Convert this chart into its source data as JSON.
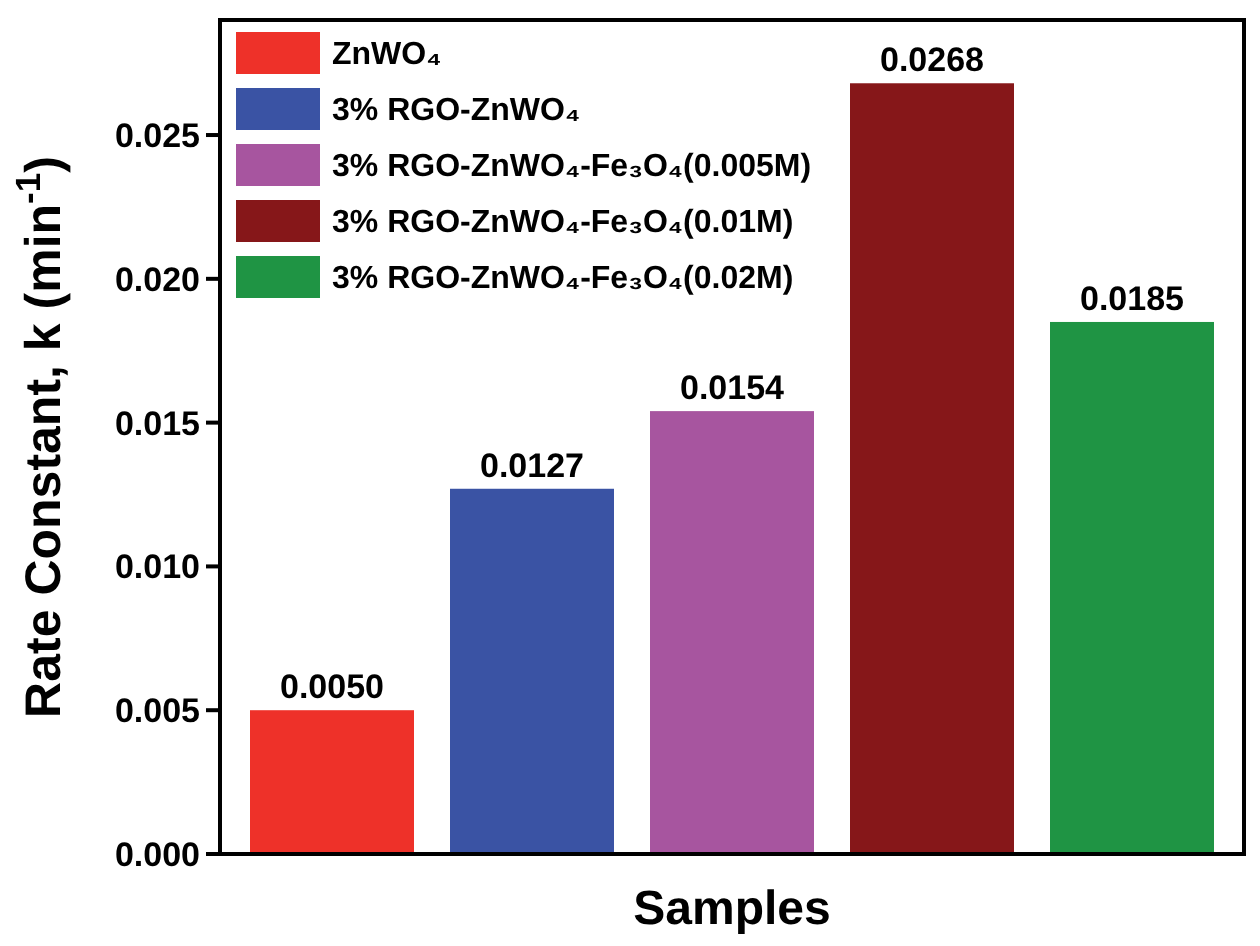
{
  "chart_data": {
    "type": "bar",
    "stacked": true,
    "xlabel": "Samples",
    "ylabel": "Rate Constant, k (min$^{-1}$)",
    "categories": [
      null,
      null,
      null,
      null,
      null
    ],
    "series": [
      {
        "name": "ZnWO₄",
        "color": "#ee3129",
        "values": [
          0.005,
          null,
          null,
          null,
          null
        ],
        "value_labels": [
          "0.0050",
          null,
          null,
          null,
          null
        ]
      },
      {
        "name": "3% RGO-ZnWO₄",
        "color": "#3a53a4",
        "values": [
          null,
          0.0127,
          null,
          null,
          null
        ],
        "value_labels": [
          null,
          "0.0127",
          null,
          null,
          null
        ]
      },
      {
        "name": "3% RGO-ZnWO₄-Fe₃O₄(0.005M)",
        "color": "#a7559f",
        "values": [
          null,
          null,
          0.0154,
          null,
          null
        ],
        "value_labels": [
          null,
          null,
          "0.0154",
          null,
          null
        ]
      },
      {
        "name": "3% RGO-ZnWO₄-Fe₃O₄(0.01M)",
        "color": "#861719",
        "values": [
          null,
          null,
          null,
          0.0268,
          null
        ],
        "value_labels": [
          null,
          null,
          null,
          "0.0268",
          null
        ]
      },
      {
        "name": "3% RGO-ZnWO₄-Fe₃O₄(0.02M)",
        "color": "#1f9444",
        "values": [
          null,
          null,
          null,
          null,
          0.0185
        ],
        "value_labels": [
          null,
          null,
          null,
          null,
          "0.0185"
        ]
      }
    ],
    "ylim": [
      0,
      0.029
    ],
    "yticks": [
      {
        "value": 0,
        "label": "0.000"
      },
      {
        "value": 0.005,
        "label": "0.005"
      },
      {
        "value": 0.01,
        "label": "0.010"
      },
      {
        "value": 0.015,
        "label": "0.015"
      },
      {
        "value": 0.02,
        "label": "0.020"
      },
      {
        "value": 0.025,
        "label": "0.025"
      }
    ],
    "legend": "top left",
    "grid": false
  }
}
